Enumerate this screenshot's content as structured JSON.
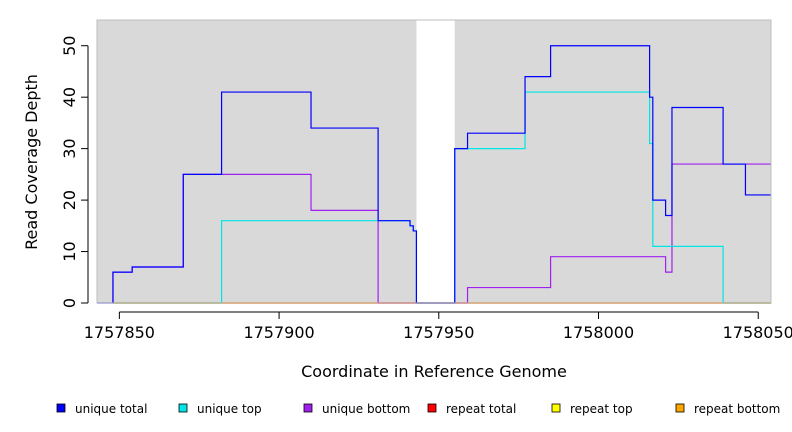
{
  "chart_data": {
    "type": "line",
    "xlabel": "Coordinate in Reference Genome",
    "ylabel": "Read Coverage Depth",
    "xlim": [
      1757843,
      1758054
    ],
    "ylim": [
      0,
      55
    ],
    "grid": false,
    "background": "#d9d9d9",
    "x_ticks": [
      1757850,
      1757900,
      1757950,
      1758000,
      1758050
    ],
    "x_tick_labels": [
      "1757850",
      "1757900",
      "1757950",
      "1758000",
      "1758050"
    ],
    "y_ticks": [
      0,
      10,
      20,
      30,
      40,
      50
    ],
    "y_tick_labels": [
      "0",
      "10",
      "20",
      "30",
      "40",
      "50"
    ],
    "gap_region": [
      1757943,
      1757955
    ],
    "legend_position": "bottom",
    "legend": [
      {
        "label": "unique total",
        "color": "#0000ff"
      },
      {
        "label": "unique top",
        "color": "#00e5e5"
      },
      {
        "label": "unique bottom",
        "color": "#a020f0"
      },
      {
        "label": "repeat total",
        "color": "#ff0000"
      },
      {
        "label": "repeat top",
        "color": "#ffff00"
      },
      {
        "label": "repeat bottom",
        "color": "#ffa500"
      }
    ],
    "series": [
      {
        "name": "unique total",
        "color": "#0000ff",
        "x": [
          1757843,
          1757848,
          1757848,
          1757854,
          1757854,
          1757870,
          1757870,
          1757882,
          1757882,
          1757910,
          1757910,
          1757931,
          1757931,
          1757941,
          1757941,
          1757942,
          1757942,
          1757943,
          1757943,
          1757955,
          1757955,
          1757959,
          1757959,
          1757977,
          1757977,
          1757985,
          1757985,
          1758016,
          1758016,
          1758017,
          1758017,
          1758021,
          1758021,
          1758023,
          1758023,
          1758039,
          1758039,
          1758046,
          1758046,
          1758054
        ],
        "y": [
          0,
          0,
          6,
          6,
          7,
          7,
          25,
          25,
          41,
          41,
          34,
          34,
          16,
          16,
          15,
          15,
          14,
          14,
          0,
          0,
          30,
          30,
          33,
          33,
          44,
          44,
          50,
          50,
          40,
          40,
          20,
          20,
          17,
          17,
          38,
          38,
          27,
          27,
          21,
          21
        ]
      },
      {
        "name": "unique top",
        "color": "#00e5e5",
        "x": [
          1757848,
          1757882,
          1757882,
          1757931,
          1757931,
          1757941,
          1757941,
          1757942,
          1757942,
          1757943,
          1757943,
          1757955,
          1757955,
          1757977,
          1757977,
          1758016,
          1758016,
          1758017,
          1758017,
          1758039,
          1758039,
          1758054
        ],
        "y": [
          0,
          0,
          16,
          16,
          16,
          16,
          15,
          15,
          14,
          14,
          0,
          0,
          30,
          30,
          41,
          41,
          31,
          31,
          11,
          11,
          0,
          0
        ]
      },
      {
        "name": "unique bottom",
        "color": "#a020f0",
        "x": [
          1757848,
          1757848,
          1757854,
          1757854,
          1757870,
          1757870,
          1757910,
          1757910,
          1757931,
          1757931,
          1757959,
          1757959,
          1757985,
          1757985,
          1758021,
          1758021,
          1758023,
          1758023,
          1758039,
          1758039,
          1758054
        ],
        "y": [
          0,
          6,
          6,
          7,
          7,
          25,
          25,
          18,
          18,
          0,
          0,
          3,
          3,
          9,
          9,
          6,
          6,
          27,
          27,
          27,
          27
        ]
      },
      {
        "name": "repeat total",
        "color": "#ff0000",
        "x": [
          1757848,
          1758054
        ],
        "y": [
          0,
          0
        ]
      },
      {
        "name": "repeat top",
        "color": "#ffff00",
        "x": [
          1757848,
          1758054
        ],
        "y": [
          0,
          0
        ]
      },
      {
        "name": "repeat bottom",
        "color": "#ffa500",
        "x": [
          1757848,
          1758054
        ],
        "y": [
          0,
          0
        ]
      }
    ]
  }
}
